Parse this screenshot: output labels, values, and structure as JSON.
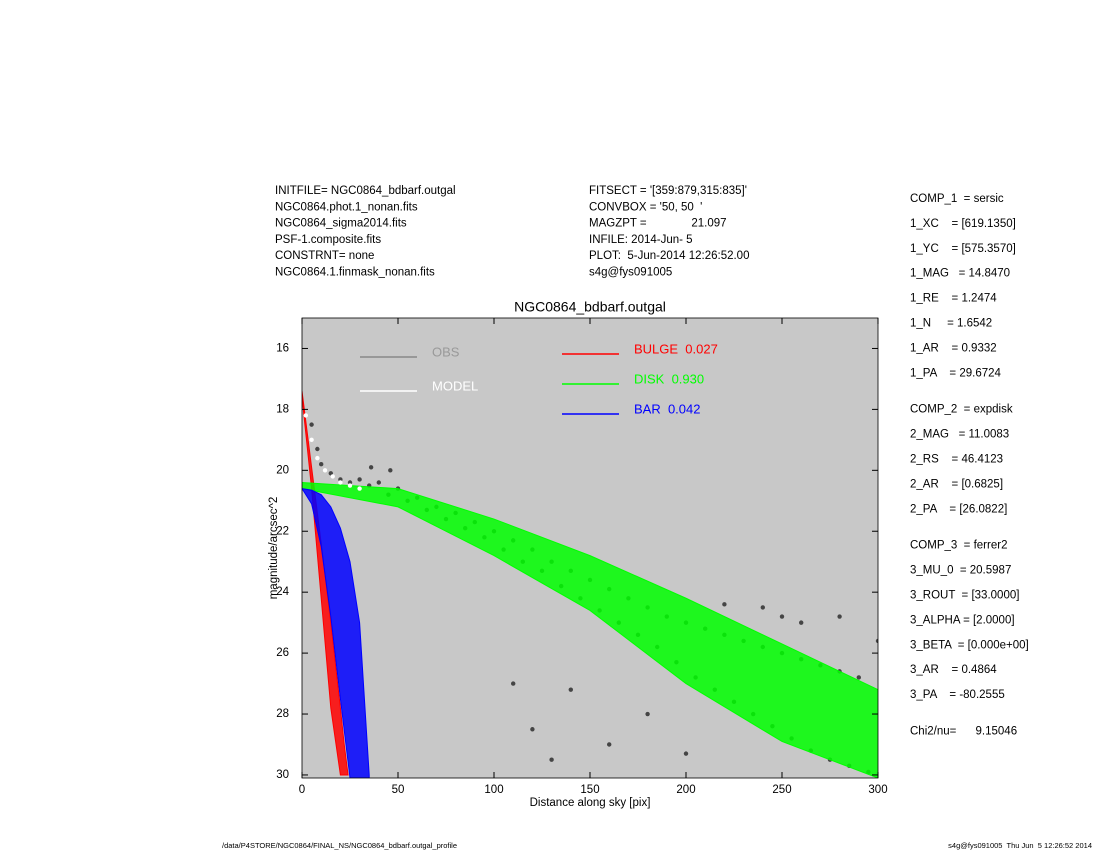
{
  "header": {
    "left": [
      "INITFILE= NGC0864_bdbarf.outgal",
      "NGC0864.phot.1_nonan.fits",
      "NGC0864_sigma2014.fits",
      "PSF-1.composite.fits",
      "CONSTRNT= none",
      "NGC0864.1.finmask_nonan.fits"
    ],
    "middle": [
      "FITSECT = '[359:879,315:835]'",
      "CONVBOX = '50, 50  '",
      "MAGZPT =              21.097",
      "INFILE: 2014-Jun- 5",
      "PLOT:  5-Jun-2014 12:26:52.00",
      "s4g@fys091005"
    ]
  },
  "params": [
    [
      "COMP_1  = sersic",
      "1_XC    = [619.1350]",
      "1_YC    = [575.3570]",
      "1_MAG   = 14.8470",
      "1_RE    = 1.2474",
      "1_N     = 1.6542",
      "1_AR    = 0.9332",
      "1_PA    = 29.6724"
    ],
    [
      "COMP_2  = expdisk",
      "2_MAG   = 11.0083",
      "2_RS    = 46.4123",
      "2_AR    = [0.6825]",
      "2_PA    = [26.0822]"
    ],
    [
      "COMP_3  = ferrer2",
      "3_MU_0  = 20.5987",
      "3_ROUT  = [33.0000]",
      "3_ALPHA = [2.0000]",
      "3_BETA  = [0.000e+00]",
      "3_AR    = 0.4864",
      "3_PA    = -80.2555"
    ],
    [
      "Chi2/nu=      9.15046"
    ]
  ],
  "footer": {
    "left": "/data/P4STORE/NGC0864/FINAL_NS/NGC0864_bdbarf.outgal_profile",
    "right": "s4g@fys091005  Thu Jun  5 12:26:52 2014"
  },
  "chart_data": {
    "type": "scatter",
    "title": "NGC0864_bdbarf.outgal",
    "x_label": "Distance along sky [pix]",
    "y_label": "magnitude/arcsec^2",
    "xlim": [
      0,
      300
    ],
    "xticks": [
      0,
      50,
      100,
      150,
      200,
      250,
      300
    ],
    "ylim": [
      30.1,
      15
    ],
    "yticks": [
      16,
      18,
      20,
      22,
      24,
      26,
      28,
      30
    ],
    "series": [
      {
        "name": "OBS",
        "color": "#454545",
        "kind": "points",
        "x": [
          5,
          8,
          10,
          15,
          20,
          25,
          30,
          35,
          40,
          45,
          50,
          55,
          60,
          65,
          70,
          75,
          80,
          85,
          90,
          95,
          100,
          105,
          110,
          115,
          120,
          125,
          130,
          135,
          140,
          145,
          150,
          155,
          160,
          165,
          170,
          175,
          180,
          185,
          190,
          195,
          200,
          205,
          210,
          215,
          220,
          225,
          230,
          235,
          240,
          245,
          250,
          255,
          260,
          265,
          270,
          275,
          280,
          285,
          290,
          295,
          120,
          140,
          160,
          180,
          200,
          130,
          110,
          240,
          260,
          280,
          300,
          250,
          220,
          46,
          36
        ],
        "values": [
          18.5,
          19.3,
          19.8,
          20.1,
          20.3,
          20.4,
          20.3,
          20.5,
          20.4,
          20.8,
          20.6,
          21.0,
          20.9,
          21.3,
          21.2,
          21.6,
          21.4,
          21.9,
          21.7,
          22.2,
          22.0,
          22.6,
          22.3,
          23.0,
          22.6,
          23.3,
          23.0,
          23.8,
          23.3,
          24.2,
          23.6,
          24.6,
          23.9,
          25.0,
          24.2,
          25.4,
          24.5,
          25.8,
          24.8,
          26.3,
          25.0,
          26.8,
          25.2,
          27.2,
          25.4,
          27.6,
          25.6,
          28.0,
          25.8,
          28.4,
          26.0,
          28.8,
          26.2,
          29.2,
          26.4,
          29.5,
          26.6,
          29.7,
          26.8,
          29.9,
          28.5,
          27.2,
          29.0,
          28.0,
          29.3,
          29.5,
          27.0,
          24.5,
          25.0,
          24.8,
          25.6,
          24.8,
          24.4,
          20.0,
          19.9
        ]
      },
      {
        "name": "MODEL",
        "color": "#ffffff",
        "kind": "points",
        "x": [
          2,
          5,
          8,
          12,
          16,
          20,
          25,
          30
        ],
        "values": [
          18.2,
          19.0,
          19.6,
          20.0,
          20.2,
          20.4,
          20.5,
          20.6
        ]
      },
      {
        "name": "BULGE  0.027",
        "color": "#ff0000",
        "kind": "band",
        "x": [
          0,
          5,
          10,
          15,
          20,
          22,
          24
        ],
        "values": [
          17.4,
          19.9,
          22.4,
          25.0,
          27.8,
          29.0,
          30.0
        ],
        "values_faint": [
          17.6,
          20.6,
          24.2,
          27.8,
          30.0,
          30.0,
          30.0
        ]
      },
      {
        "name": "DISK  0.930",
        "color": "#00ff00",
        "kind": "band",
        "x": [
          0,
          50,
          100,
          150,
          200,
          250,
          300
        ],
        "values": [
          20.4,
          20.6,
          21.6,
          22.8,
          24.2,
          25.7,
          27.2
        ],
        "values_faint": [
          20.6,
          21.2,
          22.8,
          24.6,
          27.0,
          28.9,
          30.1
        ]
      },
      {
        "name": "BAR  0.042",
        "color": "#0000ff",
        "kind": "band",
        "x": [
          0,
          5,
          10,
          15,
          20,
          25,
          30,
          35
        ],
        "values": [
          20.6,
          20.65,
          20.8,
          21.2,
          21.9,
          23.0,
          25.0,
          30.0
        ],
        "values_faint": [
          20.6,
          21.1,
          22.5,
          24.8,
          27.5,
          30.1,
          30.1,
          30.1
        ]
      }
    ]
  }
}
